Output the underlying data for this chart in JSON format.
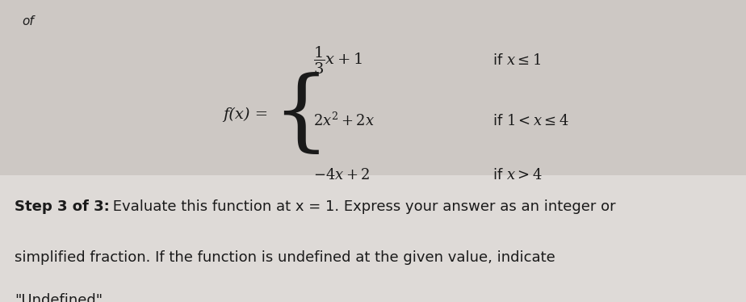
{
  "background_color_top": "#cdc8c4",
  "background_color_bottom": "#dedad7",
  "top_label": "of",
  "fx_label": "f(x) =",
  "line1_expr": "$\\dfrac{1}{3}x + 1$",
  "line1_cond": "if $x \\leq 1$",
  "line2_expr": "$2x^2 + 2x$",
  "line2_cond": "if $1 < x \\leq 4$",
  "line3_expr": "$-4x + 2$",
  "line3_cond": "if $x > 4$",
  "step_bold": "Step 3 of 3:",
  "step_rest": " Evaluate this function at x = 1. Express your answer as an integer or",
  "step_line2": "simplified fraction. If the function is undefined at the given value, indicate",
  "step_line3": "\"Undefined\".",
  "body_fontsize": 13,
  "math_fontsize": 13,
  "text_color": "#1a1a1a"
}
